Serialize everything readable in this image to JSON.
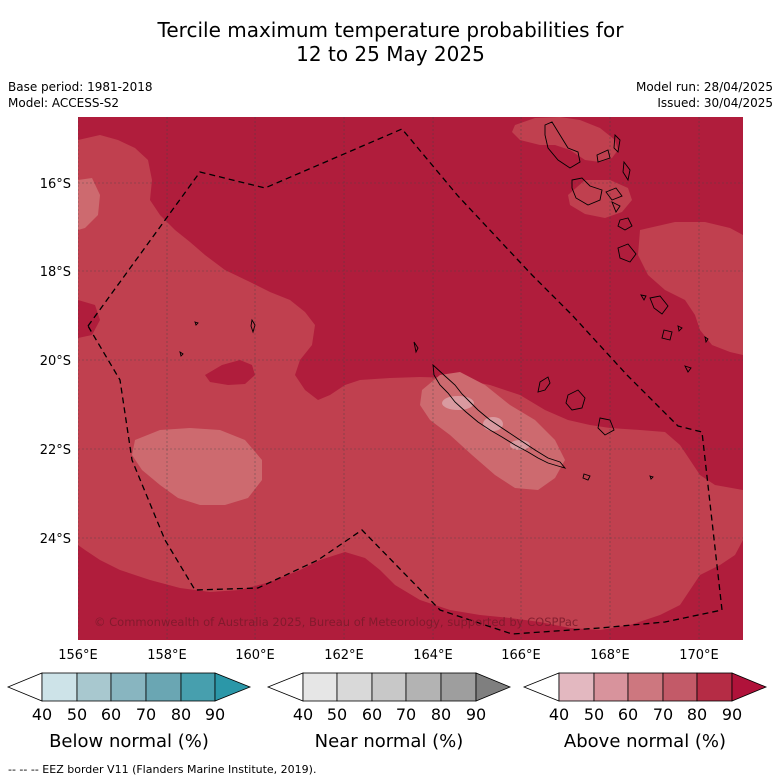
{
  "title_line1": "Tercile maximum temperature probabilities for",
  "title_line2": "12 to 25 May 2025",
  "base_period": "Base period: 1981-2018",
  "model": "Model: ACCESS-S2",
  "model_run": "Model run: 28/04/2025",
  "issued": "Issued: 30/04/2025",
  "copyright": "© Commonwealth of Australia 2025, Bureau of Meteorology, supported by COSPPac",
  "footnote": "--  --  -- EEZ border V11 (Flanders Marine Institute, 2019).",
  "lat_labels": [
    "16°S",
    "18°S",
    "20°S",
    "22°S",
    "24°S"
  ],
  "lon_labels": [
    "156°E",
    "158°E",
    "160°E",
    "162°E",
    "164°E",
    "166°E",
    "168°E",
    "170°E"
  ],
  "colorbars": [
    {
      "title": "Below normal (%)",
      "ticks": [
        "40",
        "50",
        "60",
        "70",
        "80",
        "90"
      ],
      "colors": [
        "#ffffff",
        "#cde3e8",
        "#a8c8cf",
        "#88b5c0",
        "#6aa6b3",
        "#479fae",
        "#2b97a8"
      ]
    },
    {
      "title": "Near normal (%)",
      "ticks": [
        "40",
        "50",
        "60",
        "70",
        "80",
        "90"
      ],
      "colors": [
        "#ffffff",
        "#e6e6e6",
        "#d9d9d9",
        "#c8c8c8",
        "#b3b3b3",
        "#9e9e9e",
        "#7f7f7f"
      ]
    },
    {
      "title": "Above normal (%)",
      "ticks": [
        "40",
        "50",
        "60",
        "70",
        "80",
        "90"
      ],
      "colors": [
        "#ffffff",
        "#e3b8c0",
        "#d8939c",
        "#cd777f",
        "#c35a68",
        "#b52c45",
        "#b0123a"
      ]
    }
  ],
  "map_colors": {
    "level_80_90": "#b01d3c",
    "level_70_80": "#c0404f",
    "level_60_70": "#cd6a6f",
    "level_50_60": "#d99aa0"
  }
}
